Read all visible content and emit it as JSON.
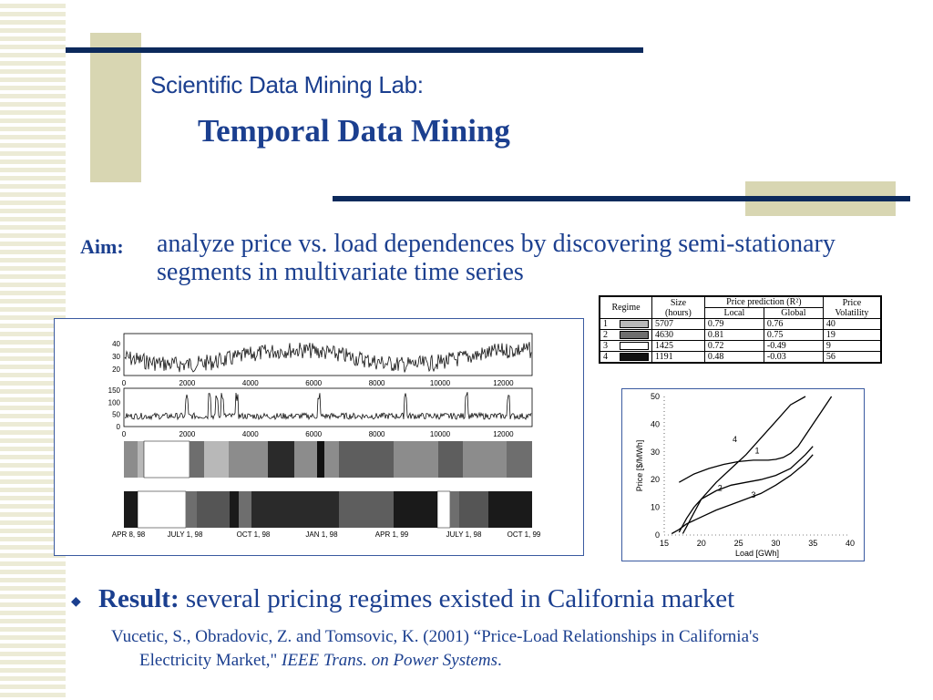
{
  "header": {
    "lab_title": "Scientific Data Mining Lab:",
    "subtitle": "Temporal Data Mining"
  },
  "aim": {
    "label": "Aim:",
    "text": "analyze price vs. load dependences by discovering semi-stationary segments in multivariate time series"
  },
  "regime_table": {
    "headers": {
      "regime": "Regime",
      "size": "Size",
      "size_unit": "(hours)",
      "prediction": "Price prediction (R²)",
      "local": "Local",
      "global": "Global",
      "volatility": "Price Volatility"
    },
    "rows": [
      {
        "regime": "1",
        "size": "5707",
        "local": "0.79",
        "global": "0.76",
        "volatility": "40",
        "color": "#b8b8b8"
      },
      {
        "regime": "2",
        "size": "4630",
        "local": "0.81",
        "global": "0.75",
        "volatility": "19",
        "color": "#6e6e6e"
      },
      {
        "regime": "3",
        "size": "1425",
        "local": "0.72",
        "global": "-0.49",
        "volatility": "9",
        "color": "#ffffff"
      },
      {
        "regime": "4",
        "size": "1191",
        "local": "0.48",
        "global": "-0.03",
        "volatility": "56",
        "color": "#111111"
      }
    ]
  },
  "timeseries_figure": {
    "load_ticks": [
      "40",
      "30",
      "20"
    ],
    "price_ticks": [
      "150",
      "100",
      "50",
      "0"
    ],
    "hour_ticks": [
      "0",
      "2000",
      "4000",
      "6000",
      "8000",
      "10000",
      "12000"
    ],
    "date_labels": [
      "APR 8, 98",
      "JULY 1, 98",
      "OCT 1, 98",
      "JAN 1, 98",
      "APR 1, 99",
      "JULY 1, 98",
      "OCT 1, 99"
    ]
  },
  "chart_data": {
    "type": "line",
    "xlabel": "Load [GWh]",
    "ylabel": "Price [$/MWh]",
    "xlim": [
      15,
      40
    ],
    "ylim": [
      0,
      50
    ],
    "x_ticks": [
      15,
      20,
      25,
      30,
      35,
      40
    ],
    "y_ticks": [
      0,
      10,
      20,
      30,
      40,
      50
    ],
    "series": [
      {
        "name": "1",
        "x": [
          17,
          19,
          21,
          23,
          25,
          27,
          29,
          30,
          31,
          32,
          33,
          34,
          35,
          36,
          37.5
        ],
        "y": [
          19,
          22,
          24,
          25.5,
          26.5,
          27,
          27,
          27.3,
          28,
          29.5,
          32,
          36,
          40,
          44,
          50
        ]
      },
      {
        "name": "2",
        "x": [
          17,
          18,
          19,
          20,
          22,
          24,
          26,
          28,
          30,
          32,
          34,
          35
        ],
        "y": [
          1,
          6,
          10,
          13,
          16,
          18,
          19,
          20,
          21.5,
          24,
          29,
          32
        ]
      },
      {
        "name": "3",
        "x": [
          16,
          17,
          18,
          20,
          22,
          24,
          26,
          28,
          30,
          32,
          34,
          35
        ],
        "y": [
          0.5,
          2,
          4,
          6.5,
          9,
          11,
          13,
          15,
          18,
          21.5,
          26,
          29
        ]
      },
      {
        "name": "4",
        "x": [
          17.5,
          18,
          19,
          20,
          22,
          24,
          26,
          28,
          30,
          32,
          34
        ],
        "y": [
          0.5,
          3,
          8,
          13,
          19,
          24,
          29,
          35,
          41,
          47,
          50
        ]
      }
    ],
    "curve_labels": [
      {
        "name": "1",
        "x": 27.5,
        "y": 29.5
      },
      {
        "name": "2",
        "x": 22.5,
        "y": 16
      },
      {
        "name": "3",
        "x": 27,
        "y": 13.5
      },
      {
        "name": "4",
        "x": 24.5,
        "y": 33.5
      }
    ]
  },
  "result": {
    "label": "Result:",
    "text": "several pricing regimes existed in California market"
  },
  "reference": {
    "line1": "Vucetic, S., Obradovic, Z. and Tomsovic, K. (2001) “Price-Load Relationships in California's",
    "line2_plain": "Electricity Market,\"",
    "line2_italic": "IEEE Trans. on Power Systems",
    "line2_end": "."
  }
}
